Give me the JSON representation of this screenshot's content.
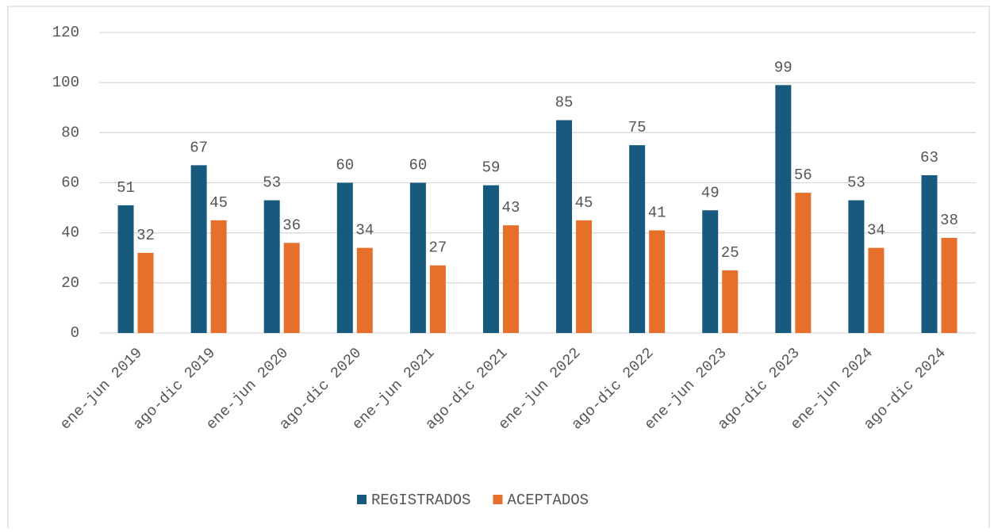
{
  "chart_data": {
    "type": "bar",
    "categories": [
      "ene-jun 2019",
      "ago-dic 2019",
      "ene-jun 2020",
      "ago-dic 2020",
      "ene-jun 2021",
      "ago-dic 2021",
      "ene-jun 2022",
      "ago-dic 2022",
      "ene-jun 2023",
      "ago-dic 2023",
      "ene-jun 2024",
      "ago-dic 2024"
    ],
    "series": [
      {
        "name": "REGISTRADOS",
        "color": "#175a7e",
        "values": [
          51,
          67,
          53,
          60,
          60,
          59,
          85,
          75,
          49,
          99,
          53,
          63
        ]
      },
      {
        "name": "ACEPTADOS",
        "color": "#e66f2c",
        "values": [
          32,
          45,
          36,
          34,
          27,
          43,
          45,
          41,
          25,
          56,
          34,
          38
        ]
      }
    ],
    "ylim": [
      0,
      120
    ],
    "yticks": [
      0,
      20,
      40,
      60,
      80,
      100,
      120
    ],
    "grid": true,
    "legend": "bottom"
  }
}
